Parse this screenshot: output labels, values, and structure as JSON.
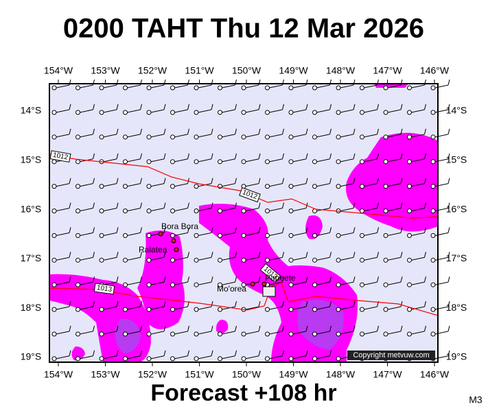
{
  "header": {
    "title": "0200 TAHT Thu 12 Mar 2026"
  },
  "map": {
    "lon_labels": [
      "154°W",
      "153°W",
      "152°W",
      "151°W",
      "150°W",
      "149°W",
      "148°W",
      "147°W",
      "146°W"
    ],
    "lat_labels": [
      "14°S",
      "15°S",
      "16°S",
      "17°S",
      "18°S",
      "19°S"
    ],
    "places": [
      "Bora Bora",
      "Raiatea",
      "Mo'orea",
      "Papeete"
    ],
    "isobar_labels": [
      "1012",
      "1012",
      "1013",
      "1013"
    ],
    "copyright": "Copyright metvuw.com"
  },
  "footer": {
    "caption": "Forecast +108 hr",
    "code": "M3"
  }
}
